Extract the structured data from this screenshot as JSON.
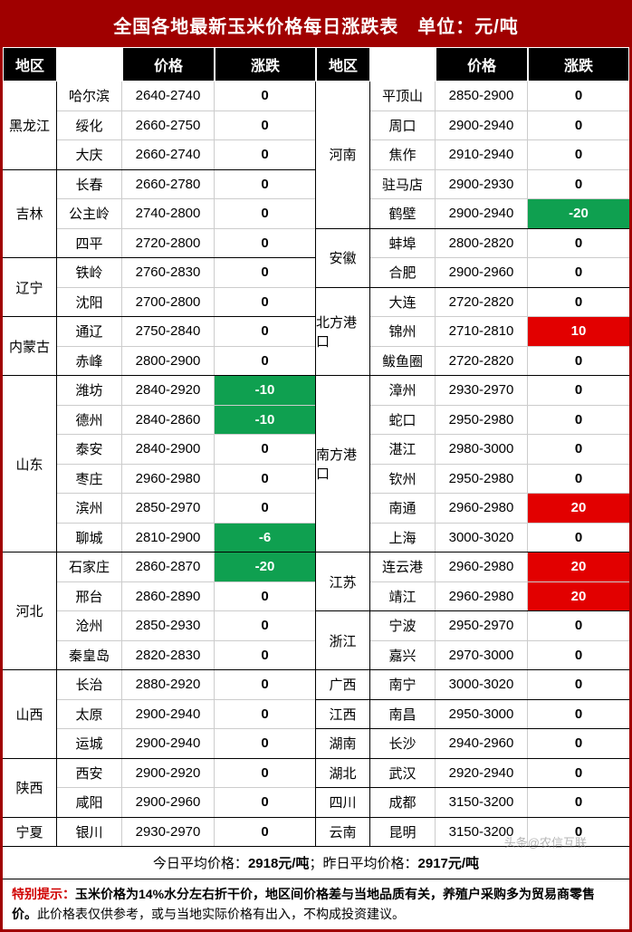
{
  "title": "全国各地最新玉米价格每日涨跌表　单位：元/吨",
  "headers": {
    "region": "地区",
    "price": "价格",
    "change": "涨跌"
  },
  "colors": {
    "header_bg": "#a00000",
    "th_bg": "#000000",
    "down_bg": "#0fa050",
    "up_bg": "#e20000"
  },
  "left": [
    {
      "province": "黑龙江",
      "rows": [
        {
          "city": "哈尔滨",
          "price": "2640-2740",
          "change": "0"
        },
        {
          "city": "绥化",
          "price": "2660-2750",
          "change": "0"
        },
        {
          "city": "大庆",
          "price": "2660-2740",
          "change": "0"
        }
      ]
    },
    {
      "province": "吉林",
      "rows": [
        {
          "city": "长春",
          "price": "2660-2780",
          "change": "0"
        },
        {
          "city": "公主岭",
          "price": "2740-2800",
          "change": "0"
        },
        {
          "city": "四平",
          "price": "2720-2800",
          "change": "0"
        }
      ]
    },
    {
      "province": "辽宁",
      "rows": [
        {
          "city": "铁岭",
          "price": "2760-2830",
          "change": "0"
        },
        {
          "city": "沈阳",
          "price": "2700-2800",
          "change": "0"
        }
      ]
    },
    {
      "province": "内蒙古",
      "rows": [
        {
          "city": "通辽",
          "price": "2750-2840",
          "change": "0"
        },
        {
          "city": "赤峰",
          "price": "2800-2900",
          "change": "0"
        }
      ]
    },
    {
      "province": "山东",
      "rows": [
        {
          "city": "潍坊",
          "price": "2840-2920",
          "change": "-10",
          "dir": "down"
        },
        {
          "city": "德州",
          "price": "2840-2860",
          "change": "-10",
          "dir": "down"
        },
        {
          "city": "泰安",
          "price": "2840-2900",
          "change": "0"
        },
        {
          "city": "枣庄",
          "price": "2960-2980",
          "change": "0"
        },
        {
          "city": "滨州",
          "price": "2850-2970",
          "change": "0"
        },
        {
          "city": "聊城",
          "price": "2810-2900",
          "change": "-6",
          "dir": "down"
        }
      ]
    },
    {
      "province": "河北",
      "rows": [
        {
          "city": "石家庄",
          "price": "2860-2870",
          "change": "-20",
          "dir": "down"
        },
        {
          "city": "邢台",
          "price": "2860-2890",
          "change": "0"
        },
        {
          "city": "沧州",
          "price": "2850-2930",
          "change": "0"
        },
        {
          "city": "秦皇岛",
          "price": "2820-2830",
          "change": "0"
        }
      ]
    },
    {
      "province": "山西",
      "rows": [
        {
          "city": "长治",
          "price": "2880-2920",
          "change": "0"
        },
        {
          "city": "太原",
          "price": "2900-2940",
          "change": "0"
        },
        {
          "city": "运城",
          "price": "2900-2940",
          "change": "0"
        }
      ]
    },
    {
      "province": "陕西",
      "rows": [
        {
          "city": "西安",
          "price": "2900-2920",
          "change": "0"
        },
        {
          "city": "咸阳",
          "price": "2900-2960",
          "change": "0"
        }
      ]
    },
    {
      "province": "宁夏",
      "rows": [
        {
          "city": "银川",
          "price": "2930-2970",
          "change": "0"
        }
      ]
    }
  ],
  "right": [
    {
      "province": "河南",
      "rows": [
        {
          "city": "平顶山",
          "price": "2850-2900",
          "change": "0"
        },
        {
          "city": "周口",
          "price": "2900-2940",
          "change": "0"
        },
        {
          "city": "焦作",
          "price": "2910-2940",
          "change": "0"
        },
        {
          "city": "驻马店",
          "price": "2900-2930",
          "change": "0"
        },
        {
          "city": "鹤壁",
          "price": "2900-2940",
          "change": "-20",
          "dir": "down"
        }
      ]
    },
    {
      "province": "安徽",
      "rows": [
        {
          "city": "蚌埠",
          "price": "2800-2820",
          "change": "0"
        },
        {
          "city": "合肥",
          "price": "2900-2960",
          "change": "0"
        }
      ]
    },
    {
      "province": "北方港口",
      "rows": [
        {
          "city": "大连",
          "price": "2720-2820",
          "change": "0"
        },
        {
          "city": "锦州",
          "price": "2710-2810",
          "change": "10",
          "dir": "up"
        },
        {
          "city": "鲅鱼圈",
          "price": "2720-2820",
          "change": "0"
        }
      ]
    },
    {
      "province": "南方港口",
      "rows": [
        {
          "city": "漳州",
          "price": "2930-2970",
          "change": "0"
        },
        {
          "city": "蛇口",
          "price": "2950-2980",
          "change": "0"
        },
        {
          "city": "湛江",
          "price": "2980-3000",
          "change": "0"
        },
        {
          "city": "钦州",
          "price": "2950-2980",
          "change": "0"
        },
        {
          "city": "南通",
          "price": "2960-2980",
          "change": "20",
          "dir": "up"
        },
        {
          "city": "上海",
          "price": "3000-3020",
          "change": "0"
        }
      ]
    },
    {
      "province": "江苏",
      "rows": [
        {
          "city": "连云港",
          "price": "2960-2980",
          "change": "20",
          "dir": "up"
        },
        {
          "city": "靖江",
          "price": "2960-2980",
          "change": "20",
          "dir": "up"
        }
      ]
    },
    {
      "province": "浙江",
      "rows": [
        {
          "city": "宁波",
          "price": "2950-2970",
          "change": "0"
        },
        {
          "city": "嘉兴",
          "price": "2970-3000",
          "change": "0"
        }
      ]
    },
    {
      "province": "广西",
      "rows": [
        {
          "city": "南宁",
          "price": "3000-3020",
          "change": "0"
        }
      ]
    },
    {
      "province": "江西",
      "rows": [
        {
          "city": "南昌",
          "price": "2950-3000",
          "change": "0"
        }
      ]
    },
    {
      "province": "湖南",
      "rows": [
        {
          "city": "长沙",
          "price": "2940-2960",
          "change": "0"
        }
      ]
    },
    {
      "province": "湖北",
      "rows": [
        {
          "city": "武汉",
          "price": "2920-2940",
          "change": "0"
        }
      ]
    },
    {
      "province": "四川",
      "rows": [
        {
          "city": "成都",
          "price": "3150-3200",
          "change": "0"
        }
      ]
    },
    {
      "province": "云南",
      "rows": [
        {
          "city": "昆明",
          "price": "3150-3200",
          "change": "0"
        }
      ]
    }
  ],
  "avg": {
    "today_label": "今日平均价格：",
    "today_value": "2918元/吨",
    "sep": "；",
    "yesterday_label": "昨日平均价格：",
    "yesterday_value": "2917元/吨"
  },
  "note": {
    "label": "特别提示：",
    "bold": "玉米价格为14%水分左右折干价，地区间价格差与当地品质有关，养殖户采购多为贸易商零售价。",
    "rest": "此价格表仅供参考，或与当地实际价格有出入，不构成投资建议。"
  },
  "watermark": "头条@农信互联"
}
